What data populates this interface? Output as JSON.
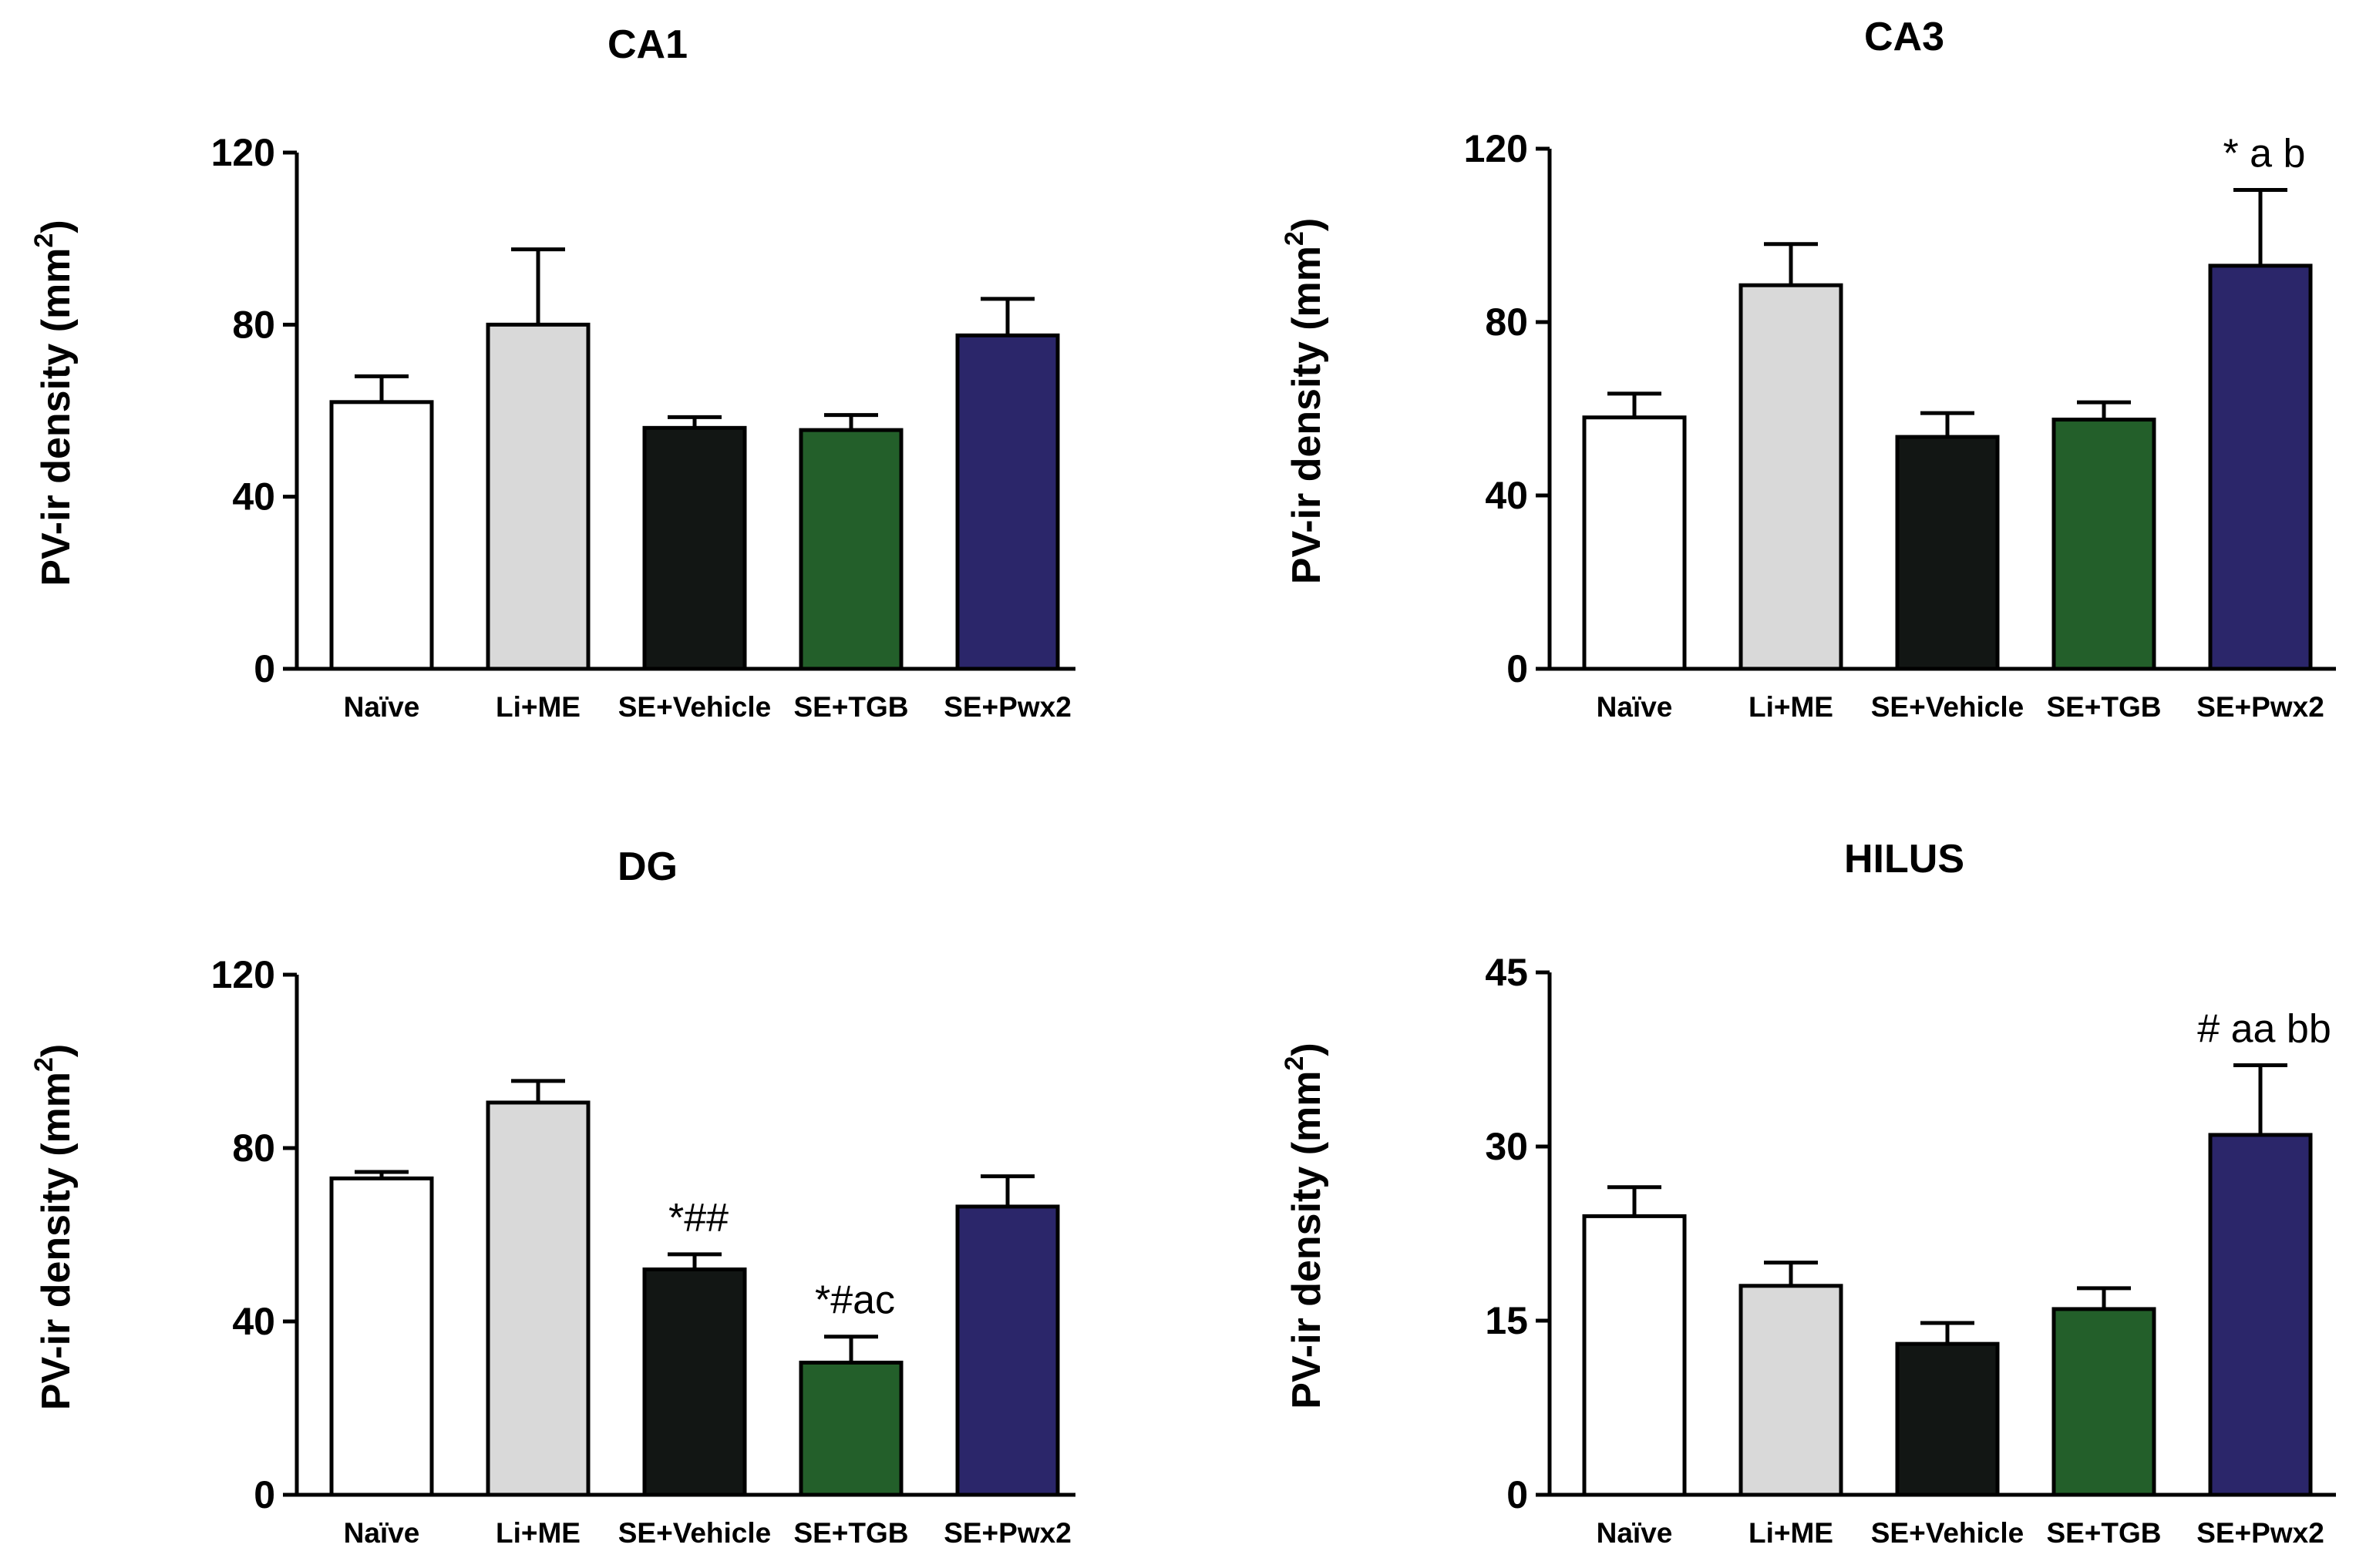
{
  "chart_data": [
    {
      "type": "bar",
      "title": "CA1",
      "ylabel_prefix": "PV-ir density (mm",
      "ylabel_sup": "2",
      "ylabel_suffix": ")",
      "ylim": [
        0,
        120
      ],
      "yticks": [
        "0",
        "40",
        "80",
        "120"
      ],
      "categories": [
        "Naïve",
        "Li+ME",
        "SE+Vehicle",
        "SE+TGB",
        "SE+Pwx2"
      ],
      "values": [
        62,
        80,
        56,
        55.5,
        77.5
      ],
      "errors": [
        6,
        17.5,
        2.5,
        3.5,
        8.5
      ],
      "annotations": [
        "",
        "",
        "",
        "",
        ""
      ]
    },
    {
      "type": "bar",
      "title": "CA3",
      "ylabel_prefix": "PV-ir density (mm",
      "ylabel_sup": "2",
      "ylabel_suffix": ")",
      "ylim": [
        0,
        120
      ],
      "yticks": [
        "0",
        "40",
        "80",
        "120"
      ],
      "categories": [
        "Naïve",
        "Li+ME",
        "SE+Vehicle",
        "SE+TGB",
        "SE+Pwx2"
      ],
      "values": [
        58,
        88.5,
        53.5,
        57.5,
        93
      ],
      "errors": [
        5.5,
        9.5,
        5.5,
        4,
        17.5
      ],
      "annotations": [
        "",
        "",
        "",
        "",
        "* a b"
      ]
    },
    {
      "type": "bar",
      "title": "DG",
      "ylabel_prefix": "PV-ir density (mm",
      "ylabel_sup": "2",
      "ylabel_suffix": ")",
      "ylim": [
        0,
        120
      ],
      "yticks": [
        "0",
        "40",
        "80",
        "120"
      ],
      "categories": [
        "Naïve",
        "Li+ME",
        "SE+Vehicle",
        "SE+TGB",
        "SE+Pwx2"
      ],
      "values": [
        73,
        90.5,
        52,
        30.5,
        66.5
      ],
      "errors": [
        1.5,
        5,
        3.5,
        6,
        7
      ],
      "annotations": [
        "",
        "",
        "*##",
        "*#ac",
        ""
      ]
    },
    {
      "type": "bar",
      "title": "HILUS",
      "ylabel_prefix": "PV-ir density (mm",
      "ylabel_sup": "2",
      "ylabel_suffix": ")",
      "ylim": [
        0,
        45
      ],
      "yticks": [
        "0",
        "15",
        "30",
        "45"
      ],
      "categories": [
        "Naïve",
        "Li+ME",
        "SE+Vehicle",
        "SE+TGB",
        "SE+Pwx2"
      ],
      "values": [
        24,
        18,
        13,
        16,
        31
      ],
      "errors": [
        2.5,
        2,
        1.8,
        1.8,
        6
      ],
      "annotations": [
        "",
        "",
        "",
        "",
        "# aa bb"
      ]
    }
  ],
  "colors": {
    "bar_fills": [
      "#ffffff",
      "#d9d9d9",
      "#121614",
      "#235f2a",
      "#2b266a"
    ],
    "stroke": "#000000"
  }
}
